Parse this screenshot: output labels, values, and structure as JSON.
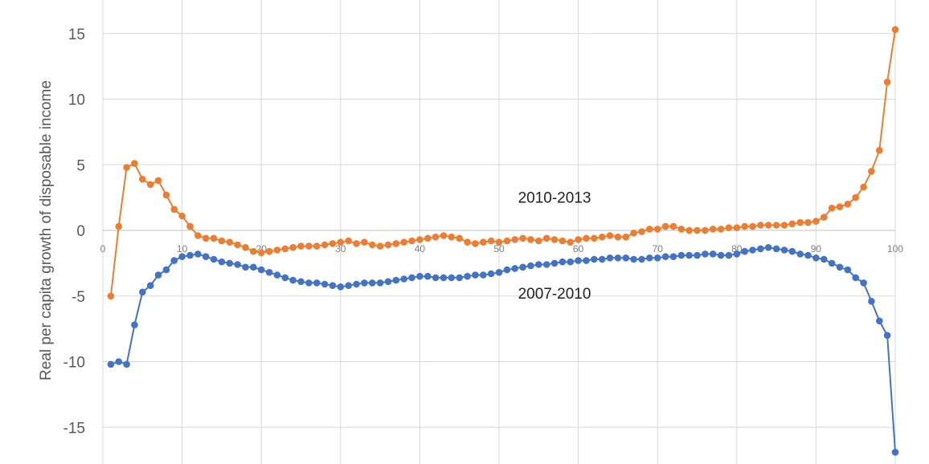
{
  "chart_data": {
    "type": "line",
    "title": "",
    "xlabel": "",
    "ylabel": "Real per capita growth of disposable income",
    "xlim": [
      0,
      100
    ],
    "ylim": [
      -17,
      17
    ],
    "x_ticks": [
      0,
      10,
      20,
      30,
      40,
      50,
      60,
      70,
      80,
      90,
      100
    ],
    "y_ticks": [
      -15,
      -10,
      -5,
      0,
      5,
      10,
      15
    ],
    "grid": true,
    "markers": true,
    "legend": "none",
    "series": [
      {
        "name": "2010-2013",
        "color": "#ED7D31",
        "x": [
          1,
          2,
          3,
          4,
          5,
          6,
          7,
          8,
          9,
          10,
          11,
          12,
          13,
          14,
          15,
          16,
          17,
          18,
          19,
          20,
          21,
          22,
          23,
          24,
          25,
          26,
          27,
          28,
          29,
          30,
          31,
          32,
          33,
          34,
          35,
          36,
          37,
          38,
          39,
          40,
          41,
          42,
          43,
          44,
          45,
          46,
          47,
          48,
          49,
          50,
          51,
          52,
          53,
          54,
          55,
          56,
          57,
          58,
          59,
          60,
          61,
          62,
          63,
          64,
          65,
          66,
          67,
          68,
          69,
          70,
          71,
          72,
          73,
          74,
          75,
          76,
          77,
          78,
          79,
          80,
          81,
          82,
          83,
          84,
          85,
          86,
          87,
          88,
          89,
          90,
          91,
          92,
          93,
          94,
          95,
          96,
          97,
          98,
          99,
          100
        ],
        "values": [
          -5.0,
          0.3,
          4.8,
          5.1,
          3.9,
          3.5,
          3.8,
          2.7,
          1.6,
          1.1,
          0.3,
          -0.4,
          -0.6,
          -0.6,
          -0.8,
          -0.9,
          -1.1,
          -1.3,
          -1.6,
          -1.7,
          -1.6,
          -1.5,
          -1.4,
          -1.3,
          -1.2,
          -1.2,
          -1.2,
          -1.1,
          -1.0,
          -0.9,
          -0.8,
          -1.0,
          -0.9,
          -1.1,
          -1.2,
          -1.1,
          -1.0,
          -0.9,
          -0.8,
          -0.7,
          -0.6,
          -0.5,
          -0.4,
          -0.5,
          -0.6,
          -0.9,
          -1.0,
          -0.9,
          -0.8,
          -0.9,
          -0.8,
          -0.7,
          -0.6,
          -0.7,
          -0.8,
          -0.6,
          -0.7,
          -0.8,
          -0.9,
          -0.7,
          -0.6,
          -0.6,
          -0.5,
          -0.4,
          -0.5,
          -0.5,
          -0.2,
          -0.1,
          0.1,
          0.1,
          0.3,
          0.3,
          0.1,
          0.0,
          0.0,
          0.0,
          0.1,
          0.1,
          0.2,
          0.2,
          0.3,
          0.3,
          0.4,
          0.4,
          0.4,
          0.4,
          0.5,
          0.6,
          0.6,
          0.7,
          1.0,
          1.7,
          1.8,
          2.0,
          2.5,
          3.3,
          4.5,
          6.1,
          11.3,
          15.3
        ]
      },
      {
        "name": "2007-2010",
        "color": "#4472C4",
        "x": [
          1,
          2,
          3,
          4,
          5,
          6,
          7,
          8,
          9,
          10,
          11,
          12,
          13,
          14,
          15,
          16,
          17,
          18,
          19,
          20,
          21,
          22,
          23,
          24,
          25,
          26,
          27,
          28,
          29,
          30,
          31,
          32,
          33,
          34,
          35,
          36,
          37,
          38,
          39,
          40,
          41,
          42,
          43,
          44,
          45,
          46,
          47,
          48,
          49,
          50,
          51,
          52,
          53,
          54,
          55,
          56,
          57,
          58,
          59,
          60,
          61,
          62,
          63,
          64,
          65,
          66,
          67,
          68,
          69,
          70,
          71,
          72,
          73,
          74,
          75,
          76,
          77,
          78,
          79,
          80,
          81,
          82,
          83,
          84,
          85,
          86,
          87,
          88,
          89,
          90,
          91,
          92,
          93,
          94,
          95,
          96,
          97,
          98,
          99,
          100
        ],
        "values": [
          -10.2,
          -10.0,
          -10.2,
          -7.2,
          -4.7,
          -4.2,
          -3.4,
          -3.0,
          -2.3,
          -2.0,
          -1.9,
          -1.8,
          -2.0,
          -2.2,
          -2.4,
          -2.5,
          -2.6,
          -2.8,
          -2.8,
          -3.0,
          -3.2,
          -3.4,
          -3.6,
          -3.8,
          -3.9,
          -4.0,
          -4.0,
          -4.1,
          -4.2,
          -4.3,
          -4.2,
          -4.1,
          -4.0,
          -4.0,
          -4.0,
          -3.9,
          -3.8,
          -3.7,
          -3.6,
          -3.5,
          -3.5,
          -3.6,
          -3.6,
          -3.6,
          -3.6,
          -3.5,
          -3.4,
          -3.4,
          -3.3,
          -3.2,
          -3.0,
          -2.9,
          -2.8,
          -2.7,
          -2.6,
          -2.6,
          -2.5,
          -2.4,
          -2.4,
          -2.3,
          -2.3,
          -2.2,
          -2.2,
          -2.1,
          -2.1,
          -2.1,
          -2.2,
          -2.2,
          -2.1,
          -2.1,
          -2.0,
          -2.0,
          -1.9,
          -1.9,
          -1.9,
          -1.8,
          -1.8,
          -1.9,
          -1.9,
          -1.8,
          -1.6,
          -1.5,
          -1.4,
          -1.3,
          -1.4,
          -1.5,
          -1.6,
          -1.8,
          -1.9,
          -2.1,
          -2.2,
          -2.5,
          -2.8,
          -3.0,
          -3.6,
          -4.0,
          -5.4,
          -6.9,
          -8.0,
          -16.9
        ]
      }
    ],
    "annotations": [
      {
        "text": "2010-2013",
        "x": 57,
        "y": 2.1
      },
      {
        "text": "2007-2010",
        "x": 57,
        "y": -5.2
      }
    ]
  }
}
